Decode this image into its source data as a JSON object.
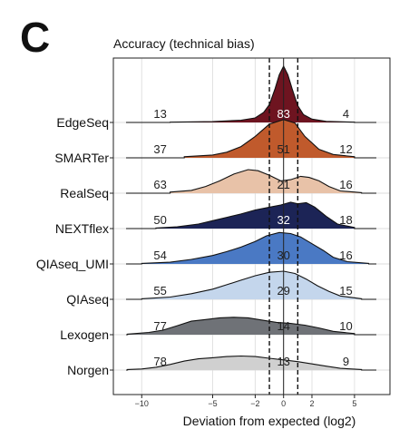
{
  "panel": {
    "letter": "C"
  },
  "chart_data": {
    "type": "ridgeline",
    "title": "Accuracy (technical bias)",
    "xlabel": "Deviation from expected (log2)",
    "ylabel": "",
    "xlim": [
      -12,
      7.5
    ],
    "x_ticks": [
      -10,
      -5,
      -2,
      0,
      2,
      5
    ],
    "x_tick_labels": [
      "−10",
      "−5",
      "−2",
      "0",
      "2",
      "5"
    ],
    "reference_lines": [
      -1,
      0,
      1
    ],
    "grid": true,
    "series": [
      {
        "name": "EdgeSeq",
        "color": "#6e1420",
        "counts": {
          "left": "13",
          "center": "83",
          "right": "4"
        },
        "density": [
          [
            -8,
            0.005
          ],
          [
            -5,
            0.015
          ],
          [
            -3,
            0.04
          ],
          [
            -2,
            0.08
          ],
          [
            -1.4,
            0.18
          ],
          [
            -1,
            0.32
          ],
          [
            -0.6,
            0.6
          ],
          [
            -0.3,
            0.85
          ],
          [
            0,
            1.0
          ],
          [
            0.3,
            0.85
          ],
          [
            0.6,
            0.6
          ],
          [
            1,
            0.3
          ],
          [
            1.4,
            0.14
          ],
          [
            2,
            0.06
          ],
          [
            3,
            0.02
          ],
          [
            5,
            0.005
          ]
        ]
      },
      {
        "name": "SMARTer",
        "color": "#c05a2c",
        "counts": {
          "left": "37",
          "center": "51",
          "right": "12"
        },
        "density": [
          [
            -7,
            0.02
          ],
          [
            -5,
            0.05
          ],
          [
            -4,
            0.1
          ],
          [
            -3,
            0.2
          ],
          [
            -2,
            0.38
          ],
          [
            -1,
            0.6
          ],
          [
            0,
            0.68
          ],
          [
            0.8,
            0.62
          ],
          [
            1.5,
            0.38
          ],
          [
            2.5,
            0.15
          ],
          [
            3.5,
            0.06
          ],
          [
            5,
            0.02
          ]
        ]
      },
      {
        "name": "RealSeq",
        "color": "#e8c2a8",
        "counts": {
          "left": "63",
          "center": "21",
          "right": "16"
        },
        "density": [
          [
            -8,
            0.02
          ],
          [
            -6.5,
            0.05
          ],
          [
            -5.5,
            0.12
          ],
          [
            -4.5,
            0.22
          ],
          [
            -3.5,
            0.34
          ],
          [
            -2.5,
            0.42
          ],
          [
            -1.8,
            0.4
          ],
          [
            -1,
            0.32
          ],
          [
            -0.2,
            0.22
          ],
          [
            0.5,
            0.24
          ],
          [
            1.2,
            0.3
          ],
          [
            1.8,
            0.28
          ],
          [
            2.5,
            0.22
          ],
          [
            3.2,
            0.12
          ],
          [
            4,
            0.04
          ],
          [
            5.5,
            0.01
          ]
        ]
      },
      {
        "name": "NEXTflex",
        "color": "#1c2456",
        "counts": {
          "left": "50",
          "center": "32",
          "right": "18"
        },
        "density": [
          [
            -9,
            0.01
          ],
          [
            -7.5,
            0.03
          ],
          [
            -6,
            0.08
          ],
          [
            -5,
            0.14
          ],
          [
            -4,
            0.2
          ],
          [
            -3,
            0.26
          ],
          [
            -2,
            0.33
          ],
          [
            -1,
            0.38
          ],
          [
            -0.2,
            0.42
          ],
          [
            0.5,
            0.47
          ],
          [
            1,
            0.44
          ],
          [
            1.6,
            0.46
          ],
          [
            2.2,
            0.38
          ],
          [
            3,
            0.22
          ],
          [
            3.8,
            0.08
          ],
          [
            5,
            0.02
          ]
        ]
      },
      {
        "name": "QIAseq_UMI",
        "color": "#4a79c4",
        "counts": {
          "left": "54",
          "center": "30",
          "right": "16"
        },
        "density": [
          [
            -10,
            0.01
          ],
          [
            -8,
            0.03
          ],
          [
            -6.5,
            0.08
          ],
          [
            -5,
            0.15
          ],
          [
            -4,
            0.22
          ],
          [
            -3,
            0.3
          ],
          [
            -2,
            0.4
          ],
          [
            -1.2,
            0.5
          ],
          [
            -0.3,
            0.56
          ],
          [
            0.5,
            0.54
          ],
          [
            1.2,
            0.48
          ],
          [
            2,
            0.36
          ],
          [
            2.8,
            0.24
          ],
          [
            3.5,
            0.12
          ],
          [
            4.5,
            0.04
          ],
          [
            6,
            0.01
          ]
        ]
      },
      {
        "name": "QIAseq",
        "color": "#c4d6ec",
        "counts": {
          "left": "55",
          "center": "29",
          "right": "15"
        },
        "density": [
          [
            -10,
            0.01
          ],
          [
            -8,
            0.04
          ],
          [
            -6.5,
            0.1
          ],
          [
            -5,
            0.18
          ],
          [
            -4,
            0.26
          ],
          [
            -3,
            0.34
          ],
          [
            -2,
            0.42
          ],
          [
            -1,
            0.48
          ],
          [
            0,
            0.5
          ],
          [
            0.8,
            0.46
          ],
          [
            1.6,
            0.36
          ],
          [
            2.4,
            0.24
          ],
          [
            3.2,
            0.14
          ],
          [
            4,
            0.06
          ],
          [
            5.5,
            0.01
          ]
        ]
      },
      {
        "name": "Lexogen",
        "color": "#6f7277",
        "counts": {
          "left": "77",
          "center": "14",
          "right": "10"
        },
        "density": [
          [
            -11,
            0.01
          ],
          [
            -9.5,
            0.04
          ],
          [
            -8.5,
            0.08
          ],
          [
            -7.5,
            0.16
          ],
          [
            -6.5,
            0.24
          ],
          [
            -5.5,
            0.27
          ],
          [
            -4.5,
            0.3
          ],
          [
            -3.5,
            0.31
          ],
          [
            -2.5,
            0.3
          ],
          [
            -1.5,
            0.26
          ],
          [
            -0.5,
            0.22
          ],
          [
            0.5,
            0.2
          ],
          [
            1.5,
            0.17
          ],
          [
            2.5,
            0.12
          ],
          [
            3.5,
            0.06
          ],
          [
            5,
            0.02
          ]
        ]
      },
      {
        "name": "Norgen",
        "color": "#d0d0d0",
        "counts": {
          "left": "78",
          "center": "13",
          "right": "9"
        },
        "density": [
          [
            -11,
            0.01
          ],
          [
            -10,
            0.02
          ],
          [
            -9,
            0.05
          ],
          [
            -8,
            0.1
          ],
          [
            -7,
            0.16
          ],
          [
            -6,
            0.2
          ],
          [
            -5,
            0.22
          ],
          [
            -4,
            0.24
          ],
          [
            -3,
            0.25
          ],
          [
            -2,
            0.24
          ],
          [
            -1,
            0.21
          ],
          [
            0,
            0.18
          ],
          [
            1,
            0.15
          ],
          [
            2,
            0.11
          ],
          [
            3,
            0.07
          ],
          [
            4,
            0.03
          ],
          [
            5.5,
            0.01
          ]
        ]
      }
    ]
  }
}
